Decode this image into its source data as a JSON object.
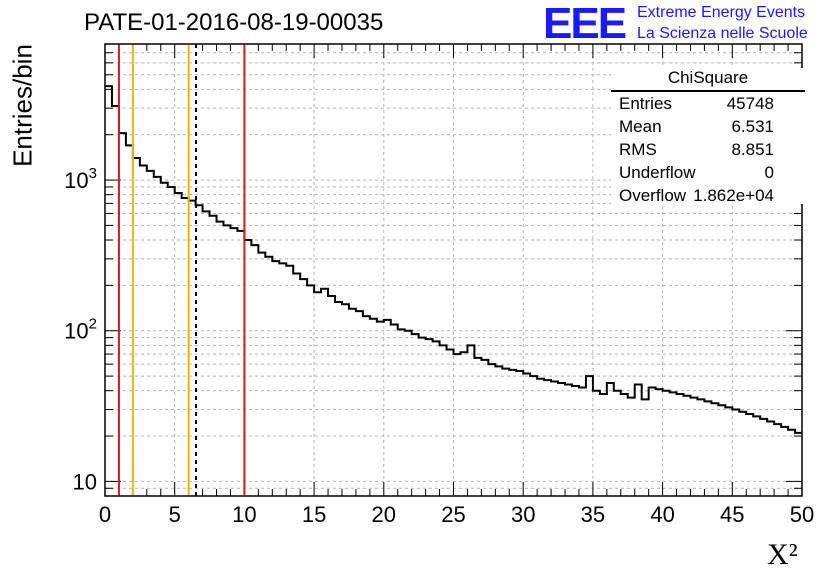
{
  "title": "PATE-01-2016-08-19-00035",
  "logo": {
    "mark": "EEE",
    "line1": "Extreme Energy Events",
    "line2": "La Scienza nelle Scuole",
    "color": "#1a1aff"
  },
  "stats": {
    "title": "ChiSquare",
    "rows": [
      {
        "label": "Entries",
        "value": "45748"
      },
      {
        "label": "Mean",
        "value": "6.531"
      },
      {
        "label": "RMS",
        "value": "8.851"
      },
      {
        "label": "Underflow",
        "value": "0"
      },
      {
        "label": "Overflow",
        "value": "1.862e+04"
      }
    ]
  },
  "chart_data": {
    "type": "histogram",
    "title": "PATE-01-2016-08-19-00035",
    "xlabel": "X²",
    "ylabel": "Entries/bin",
    "xlim": [
      0,
      50
    ],
    "ylim": [
      8,
      8000
    ],
    "yscale": "log",
    "grid": true,
    "bin_width": 0.5,
    "x_ticks": [
      0,
      5,
      10,
      15,
      20,
      25,
      30,
      35,
      40,
      45,
      50
    ],
    "y_ticks": [
      {
        "value": 10,
        "label": "10"
      },
      {
        "value": 100,
        "label": "10",
        "sup": "2"
      },
      {
        "value": 1000,
        "label": "10",
        "sup": "3"
      }
    ],
    "values": [
      4200,
      3100,
      2050,
      1700,
      1400,
      1250,
      1150,
      1050,
      960,
      900,
      820,
      760,
      730,
      680,
      620,
      580,
      530,
      500,
      480,
      460,
      400,
      370,
      330,
      310,
      290,
      280,
      270,
      240,
      220,
      200,
      180,
      190,
      170,
      155,
      150,
      140,
      135,
      125,
      120,
      115,
      118,
      110,
      102,
      100,
      95,
      90,
      88,
      85,
      80,
      75,
      70,
      72,
      80,
      66,
      64,
      60,
      58,
      56,
      55,
      54,
      52,
      50,
      48,
      47,
      46,
      45,
      44,
      43,
      42,
      50,
      40,
      38,
      45,
      40,
      38,
      36,
      44,
      35,
      42,
      41,
      40,
      39,
      38,
      37,
      36,
      35,
      34,
      33,
      32,
      31,
      30,
      29,
      28,
      27,
      26,
      25,
      24,
      23,
      22,
      21
    ],
    "vlines": [
      {
        "x": 1,
        "color": "#e01818",
        "style": "solid"
      },
      {
        "x": 2,
        "color": "#f0b400",
        "style": "solid"
      },
      {
        "x": 6,
        "color": "#f0b400",
        "style": "solid"
      },
      {
        "x": 6.531,
        "color": "#000000",
        "style": "dashed"
      },
      {
        "x": 10,
        "color": "#e01818",
        "style": "solid"
      }
    ]
  }
}
